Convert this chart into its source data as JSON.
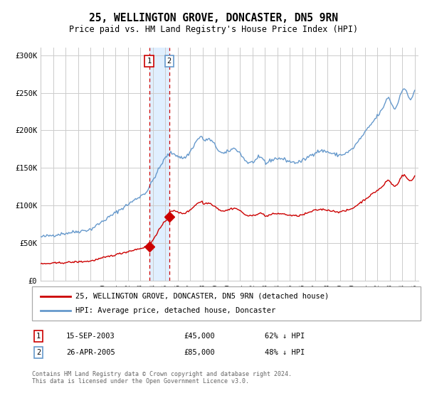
{
  "title": "25, WELLINGTON GROVE, DONCASTER, DN5 9RN",
  "subtitle": "Price paid vs. HM Land Registry's House Price Index (HPI)",
  "title_fontsize": 10.5,
  "subtitle_fontsize": 8.5,
  "ylabel_ticks": [
    "£0",
    "£50K",
    "£100K",
    "£150K",
    "£200K",
    "£250K",
    "£300K"
  ],
  "ytick_vals": [
    0,
    50000,
    100000,
    150000,
    200000,
    250000,
    300000
  ],
  "ylim": [
    0,
    310000
  ],
  "x_start_year": 1995,
  "x_end_year": 2025,
  "sale1_date": 2003.71,
  "sale1_price": 45000,
  "sale1_label": "1",
  "sale2_date": 2005.32,
  "sale2_price": 85000,
  "sale2_label": "2",
  "legend_line1": "25, WELLINGTON GROVE, DONCASTER, DN5 9RN (detached house)",
  "legend_line2": "HPI: Average price, detached house, Doncaster",
  "table_row1": [
    "1",
    "15-SEP-2003",
    "£45,000",
    "62% ↓ HPI"
  ],
  "table_row2": [
    "2",
    "26-APR-2005",
    "£85,000",
    "48% ↓ HPI"
  ],
  "footnote": "Contains HM Land Registry data © Crown copyright and database right 2024.\nThis data is licensed under the Open Government Licence v3.0.",
  "red_color": "#cc0000",
  "blue_color": "#6699cc",
  "shade_color": "#ddeeff",
  "grid_color": "#cccccc",
  "bg_color": "#ffffff"
}
